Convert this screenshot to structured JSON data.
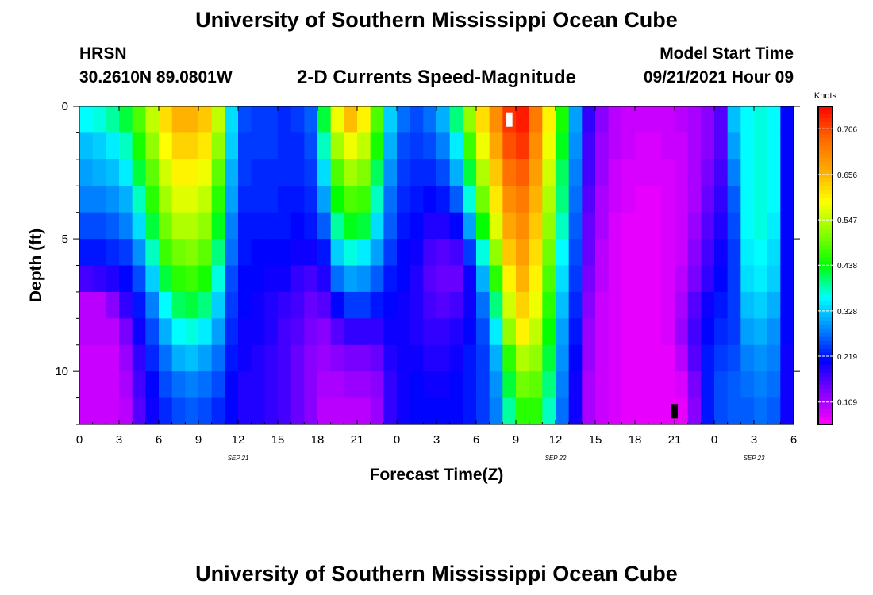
{
  "header": {
    "title": "University of Southern Mississippi Ocean Cube",
    "station": "HRSN",
    "coords": "30.2610N  89.0801W",
    "chart_title": "2-D Currents Speed-Magnitude",
    "start_label": "Model Start Time",
    "start_value": "09/21/2021 Hour 09"
  },
  "footer": {
    "title": "University of Southern Mississippi Ocean Cube"
  },
  "chart_data": {
    "type": "heatmap",
    "title": "2-D Currents Speed-Magnitude",
    "xlabel": "Forecast Time(Z)",
    "ylabel": "Depth (ft)",
    "x_tick_labels": [
      "0",
      "3",
      "6",
      "9",
      "12",
      "15",
      "18",
      "21",
      "0",
      "3",
      "6",
      "9",
      "12",
      "15",
      "18",
      "21",
      "0",
      "3",
      "6"
    ],
    "x_hours": [
      0,
      3,
      6,
      9,
      12,
      15,
      18,
      21,
      24,
      27,
      30,
      33,
      36,
      39,
      42,
      45,
      48,
      51,
      54
    ],
    "date_labels": [
      {
        "label": "SEP 21",
        "hour": 12
      },
      {
        "label": "SEP 22",
        "hour": 36
      },
      {
        "label": "SEP 23",
        "hour": 51
      }
    ],
    "xlim": [
      0,
      54
    ],
    "y_ticks": [
      0,
      5,
      10
    ],
    "ylim": [
      0,
      12
    ],
    "y_inverted": true,
    "colorbar": {
      "unit": "Knots",
      "ticks": [
        0.766,
        0.656,
        0.547,
        0.438,
        0.328,
        0.219,
        0.109
      ],
      "range": [
        0.055,
        0.82
      ]
    },
    "depth_levels": 12,
    "time_columns": [
      {
        "hour": 0.5,
        "s": [
          0.36,
          0.32,
          0.3,
          0.28,
          0.25,
          0.22,
          0.17,
          0.1,
          0.1,
          0.09,
          0.09,
          0.09
        ]
      },
      {
        "hour": 1.5,
        "s": [
          0.37,
          0.33,
          0.31,
          0.28,
          0.25,
          0.22,
          0.18,
          0.1,
          0.1,
          0.09,
          0.09,
          0.09
        ]
      },
      {
        "hour": 2.5,
        "s": [
          0.39,
          0.35,
          0.32,
          0.29,
          0.26,
          0.23,
          0.19,
          0.13,
          0.1,
          0.09,
          0.09,
          0.09
        ]
      },
      {
        "hour": 3.5,
        "s": [
          0.42,
          0.38,
          0.35,
          0.31,
          0.28,
          0.24,
          0.21,
          0.18,
          0.14,
          0.12,
          0.11,
          0.1
        ]
      },
      {
        "hour": 4.5,
        "s": [
          0.48,
          0.45,
          0.42,
          0.38,
          0.34,
          0.29,
          0.25,
          0.22,
          0.2,
          0.18,
          0.17,
          0.16
        ]
      },
      {
        "hour": 5.5,
        "s": [
          0.55,
          0.52,
          0.49,
          0.46,
          0.42,
          0.38,
          0.33,
          0.28,
          0.25,
          0.23,
          0.21,
          0.2
        ]
      },
      {
        "hour": 6.5,
        "s": [
          0.62,
          0.59,
          0.56,
          0.53,
          0.5,
          0.47,
          0.42,
          0.36,
          0.31,
          0.27,
          0.25,
          0.23
        ]
      },
      {
        "hour": 7.5,
        "s": [
          0.66,
          0.63,
          0.6,
          0.57,
          0.54,
          0.5,
          0.46,
          0.41,
          0.36,
          0.31,
          0.27,
          0.25
        ]
      },
      {
        "hour": 8.5,
        "s": [
          0.66,
          0.63,
          0.6,
          0.57,
          0.54,
          0.51,
          0.47,
          0.42,
          0.37,
          0.32,
          0.28,
          0.26
        ]
      },
      {
        "hour": 9.5,
        "s": [
          0.64,
          0.61,
          0.58,
          0.55,
          0.52,
          0.49,
          0.45,
          0.4,
          0.35,
          0.3,
          0.27,
          0.25
        ]
      },
      {
        "hour": 10.5,
        "s": [
          0.55,
          0.52,
          0.49,
          0.46,
          0.43,
          0.4,
          0.37,
          0.33,
          0.3,
          0.27,
          0.25,
          0.23
        ]
      },
      {
        "hour": 11.5,
        "s": [
          0.34,
          0.33,
          0.31,
          0.3,
          0.28,
          0.27,
          0.25,
          0.24,
          0.23,
          0.22,
          0.21,
          0.21
        ]
      },
      {
        "hour": 12.5,
        "s": [
          0.25,
          0.24,
          0.24,
          0.23,
          0.22,
          0.22,
          0.21,
          0.21,
          0.2,
          0.2,
          0.19,
          0.19
        ]
      },
      {
        "hour": 13.5,
        "s": [
          0.24,
          0.24,
          0.23,
          0.23,
          0.22,
          0.21,
          0.21,
          0.2,
          0.2,
          0.19,
          0.19,
          0.19
        ]
      },
      {
        "hour": 14.5,
        "s": [
          0.24,
          0.24,
          0.23,
          0.23,
          0.22,
          0.21,
          0.2,
          0.19,
          0.19,
          0.18,
          0.18,
          0.18
        ]
      },
      {
        "hour": 15.5,
        "s": [
          0.23,
          0.23,
          0.23,
          0.22,
          0.22,
          0.21,
          0.2,
          0.18,
          0.17,
          0.17,
          0.17,
          0.17
        ]
      },
      {
        "hour": 16.5,
        "s": [
          0.24,
          0.23,
          0.23,
          0.22,
          0.21,
          0.2,
          0.18,
          0.17,
          0.16,
          0.15,
          0.15,
          0.15
        ]
      },
      {
        "hour": 17.5,
        "s": [
          0.26,
          0.25,
          0.24,
          0.23,
          0.22,
          0.2,
          0.17,
          0.15,
          0.14,
          0.13,
          0.13,
          0.13
        ]
      },
      {
        "hour": 18.5,
        "s": [
          0.42,
          0.38,
          0.34,
          0.3,
          0.26,
          0.22,
          0.19,
          0.16,
          0.13,
          0.12,
          0.11,
          0.1
        ]
      },
      {
        "hour": 19.5,
        "s": [
          0.58,
          0.53,
          0.48,
          0.44,
          0.39,
          0.33,
          0.27,
          0.21,
          0.16,
          0.13,
          0.11,
          0.1
        ]
      },
      {
        "hour": 20.5,
        "s": [
          0.65,
          0.58,
          0.53,
          0.48,
          0.43,
          0.37,
          0.3,
          0.24,
          0.18,
          0.14,
          0.12,
          0.1
        ]
      },
      {
        "hour": 21.5,
        "s": [
          0.6,
          0.55,
          0.51,
          0.47,
          0.42,
          0.35,
          0.29,
          0.24,
          0.18,
          0.14,
          0.12,
          0.1
        ]
      },
      {
        "hour": 22.5,
        "s": [
          0.48,
          0.45,
          0.41,
          0.38,
          0.34,
          0.3,
          0.26,
          0.22,
          0.18,
          0.15,
          0.13,
          0.12
        ]
      },
      {
        "hour": 23.5,
        "s": [
          0.33,
          0.31,
          0.29,
          0.27,
          0.26,
          0.24,
          0.22,
          0.21,
          0.2,
          0.19,
          0.18,
          0.18
        ]
      },
      {
        "hour": 24.5,
        "s": [
          0.27,
          0.25,
          0.24,
          0.23,
          0.22,
          0.21,
          0.21,
          0.2,
          0.2,
          0.2,
          0.2,
          0.2
        ]
      },
      {
        "hour": 25.5,
        "s": [
          0.25,
          0.24,
          0.23,
          0.22,
          0.21,
          0.2,
          0.19,
          0.19,
          0.19,
          0.2,
          0.21,
          0.21
        ]
      },
      {
        "hour": 26.5,
        "s": [
          0.27,
          0.25,
          0.23,
          0.21,
          0.19,
          0.17,
          0.16,
          0.17,
          0.18,
          0.19,
          0.2,
          0.21
        ]
      },
      {
        "hour": 27.5,
        "s": [
          0.31,
          0.28,
          0.25,
          0.22,
          0.19,
          0.16,
          0.15,
          0.16,
          0.18,
          0.19,
          0.2,
          0.21
        ]
      },
      {
        "hour": 28.5,
        "s": [
          0.4,
          0.35,
          0.31,
          0.26,
          0.21,
          0.17,
          0.15,
          0.17,
          0.19,
          0.2,
          0.21,
          0.21
        ]
      },
      {
        "hour": 29.5,
        "s": [
          0.52,
          0.47,
          0.42,
          0.37,
          0.3,
          0.24,
          0.2,
          0.2,
          0.21,
          0.22,
          0.22,
          0.22
        ]
      },
      {
        "hour": 30.5,
        "s": [
          0.62,
          0.58,
          0.54,
          0.5,
          0.44,
          0.37,
          0.31,
          0.27,
          0.25,
          0.24,
          0.24,
          0.24
        ]
      },
      {
        "hour": 31.5,
        "s": [
          0.7,
          0.67,
          0.64,
          0.61,
          0.57,
          0.52,
          0.46,
          0.4,
          0.35,
          0.31,
          0.29,
          0.28
        ]
      },
      {
        "hour": 32.5,
        "s": [
          0.78,
          0.76,
          0.73,
          0.7,
          0.67,
          0.64,
          0.6,
          0.56,
          0.52,
          0.46,
          0.42,
          0.39
        ]
      },
      {
        "hour": 33.5,
        "s": [
          0.8,
          0.78,
          0.75,
          0.72,
          0.7,
          0.68,
          0.66,
          0.63,
          0.6,
          0.54,
          0.5,
          0.46
        ]
      },
      {
        "hour": 34.5,
        "s": [
          0.72,
          0.7,
          0.68,
          0.66,
          0.64,
          0.62,
          0.6,
          0.58,
          0.55,
          0.52,
          0.49,
          0.46
        ]
      },
      {
        "hour": 35.5,
        "s": [
          0.6,
          0.58,
          0.56,
          0.54,
          0.52,
          0.5,
          0.48,
          0.46,
          0.44,
          0.42,
          0.4,
          0.38
        ]
      },
      {
        "hour": 36.5,
        "s": [
          0.45,
          0.43,
          0.41,
          0.4,
          0.38,
          0.36,
          0.34,
          0.32,
          0.3,
          0.29,
          0.28,
          0.27
        ]
      },
      {
        "hour": 37.5,
        "s": [
          0.3,
          0.29,
          0.28,
          0.27,
          0.26,
          0.25,
          0.24,
          0.23,
          0.22,
          0.21,
          0.2,
          0.2
        ]
      },
      {
        "hour": 38.5,
        "s": [
          0.18,
          0.17,
          0.17,
          0.16,
          0.15,
          0.15,
          0.14,
          0.13,
          0.12,
          0.12,
          0.11,
          0.11
        ]
      },
      {
        "hour": 39.5,
        "s": [
          0.13,
          0.12,
          0.12,
          0.11,
          0.11,
          0.1,
          0.1,
          0.09,
          0.09,
          0.09,
          0.09,
          0.09
        ]
      },
      {
        "hour": 40.5,
        "s": [
          0.1,
          0.1,
          0.09,
          0.09,
          0.08,
          0.08,
          0.08,
          0.08,
          0.08,
          0.08,
          0.08,
          0.08
        ]
      },
      {
        "hour": 41.5,
        "s": [
          0.09,
          0.09,
          0.08,
          0.08,
          0.07,
          0.07,
          0.07,
          0.07,
          0.07,
          0.07,
          0.07,
          0.07
        ]
      },
      {
        "hour": 42.5,
        "s": [
          0.09,
          0.08,
          0.08,
          0.07,
          0.07,
          0.07,
          0.07,
          0.07,
          0.07,
          0.07,
          0.07,
          0.07
        ]
      },
      {
        "hour": 43.5,
        "s": [
          0.09,
          0.08,
          0.08,
          0.07,
          0.07,
          0.07,
          0.07,
          0.07,
          0.07,
          0.07,
          0.07,
          0.07
        ]
      },
      {
        "hour": 44.5,
        "s": [
          0.09,
          0.09,
          0.08,
          0.08,
          0.08,
          0.08,
          0.08,
          0.08,
          0.08,
          0.07,
          0.07,
          0.07
        ]
      },
      {
        "hour": 45.5,
        "s": [
          0.1,
          0.09,
          0.09,
          0.09,
          0.09,
          0.09,
          0.1,
          0.11,
          0.12,
          0.1,
          0.08,
          0.07
        ]
      },
      {
        "hour": 46.5,
        "s": [
          0.11,
          0.11,
          0.11,
          0.11,
          0.12,
          0.13,
          0.14,
          0.16,
          0.17,
          0.16,
          0.14,
          0.13
        ]
      },
      {
        "hour": 47.5,
        "s": [
          0.13,
          0.13,
          0.14,
          0.15,
          0.16,
          0.17,
          0.18,
          0.2,
          0.21,
          0.22,
          0.22,
          0.22
        ]
      },
      {
        "hour": 48.5,
        "s": [
          0.16,
          0.16,
          0.17,
          0.18,
          0.19,
          0.2,
          0.21,
          0.22,
          0.23,
          0.24,
          0.25,
          0.25
        ]
      },
      {
        "hour": 49.5,
        "s": [
          0.32,
          0.3,
          0.28,
          0.26,
          0.25,
          0.24,
          0.24,
          0.24,
          0.24,
          0.25,
          0.26,
          0.26
        ]
      },
      {
        "hour": 50.5,
        "s": [
          0.36,
          0.36,
          0.36,
          0.36,
          0.36,
          0.35,
          0.34,
          0.32,
          0.3,
          0.28,
          0.27,
          0.26
        ]
      },
      {
        "hour": 51.5,
        "s": [
          0.37,
          0.37,
          0.37,
          0.37,
          0.37,
          0.36,
          0.35,
          0.33,
          0.31,
          0.29,
          0.28,
          0.27
        ]
      },
      {
        "hour": 52.5,
        "s": [
          0.36,
          0.36,
          0.36,
          0.36,
          0.35,
          0.34,
          0.33,
          0.31,
          0.29,
          0.28,
          0.27,
          0.26
        ]
      },
      {
        "hour": 53.5,
        "s": [
          0.21,
          0.21,
          0.21,
          0.21,
          0.21,
          0.21,
          0.21,
          0.21,
          0.21,
          0.2,
          0.2,
          0.2
        ]
      }
    ],
    "markers": [
      {
        "name": "model-start-marker",
        "hour": 32.5,
        "depth": 0.5,
        "color": "#ffffff"
      },
      {
        "name": "low-marker",
        "hour": 45,
        "depth": 11.5,
        "color": "#000000"
      }
    ],
    "palette": [
      "#ff00ff",
      "#8800ff",
      "#0000ff",
      "#0088ff",
      "#00ffff",
      "#00ff00",
      "#88ff00",
      "#ffff00",
      "#ffaa00",
      "#ff6600",
      "#ff0000"
    ]
  }
}
